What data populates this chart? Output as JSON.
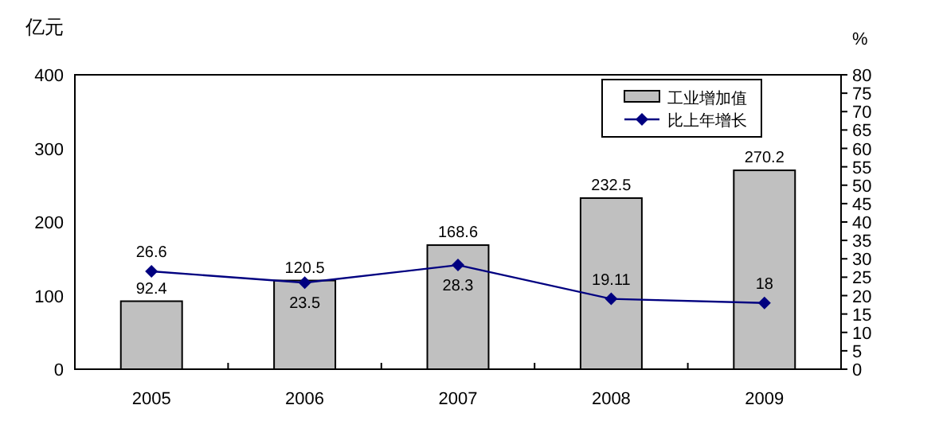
{
  "chart_data": {
    "type": "bar",
    "ylabel": "亿元",
    "y2label": "%",
    "categories": [
      "2005",
      "2006",
      "2007",
      "2008",
      "2009"
    ],
    "series": [
      {
        "name": "工业增加值",
        "color": "#c0c0c0",
        "values": [
          92.4,
          120.5,
          168.6,
          232.5,
          270.2
        ]
      },
      {
        "name": "比上年增长",
        "type": "line",
        "axis": "y2",
        "color": "#000080",
        "values": [
          26.6,
          23.5,
          28.3,
          19.11,
          18
        ]
      }
    ],
    "marker": "diamond",
    "ylim": [
      0,
      400
    ],
    "yticks": [
      0,
      100,
      200,
      300,
      400
    ],
    "y2lim": [
      0,
      80
    ],
    "y2ticks": [
      0,
      5,
      10,
      15,
      20,
      25,
      30,
      35,
      40,
      45,
      50,
      55,
      60,
      65,
      70,
      75,
      80
    ],
    "data_labels": true,
    "legend": "top right"
  }
}
